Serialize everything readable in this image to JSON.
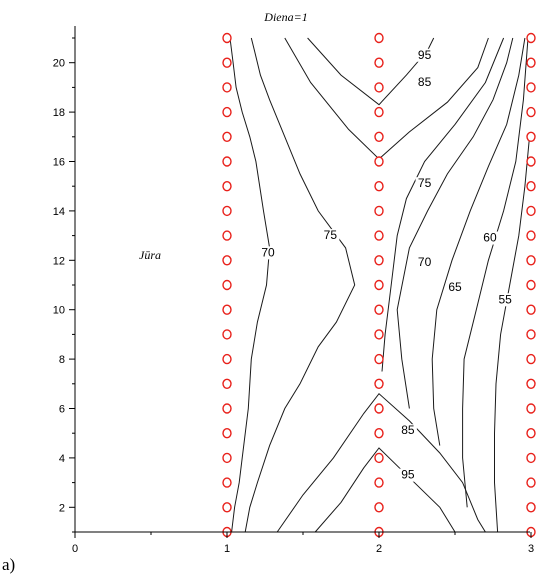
{
  "chart_data": {
    "type": "contour",
    "title": "Diena=1",
    "panel_label": "a)",
    "region_label": "Jūra",
    "xlim": [
      0,
      3
    ],
    "ylim": [
      1,
      21
    ],
    "x_ticks": [
      "0",
      "1",
      "2",
      "3"
    ],
    "y_ticks": [
      "2",
      "4",
      "6",
      "8",
      "10",
      "12",
      "14",
      "16",
      "18",
      "20"
    ],
    "grid_points": {
      "x": [
        1,
        2,
        3
      ],
      "y": [
        1,
        2,
        3,
        4,
        5,
        6,
        7,
        8,
        9,
        10,
        11,
        12,
        13,
        14,
        15,
        16,
        17,
        18,
        19,
        20,
        21
      ],
      "marker": "circle",
      "color": "#e8201a"
    },
    "contour_labels": [
      {
        "text": "70",
        "x": 1.27,
        "y": 12.2
      },
      {
        "text": "75",
        "x": 1.68,
        "y": 12.9
      },
      {
        "text": "95",
        "x": 2.3,
        "y": 20.2
      },
      {
        "text": "85",
        "x": 2.3,
        "y": 19.1
      },
      {
        "text": "75",
        "x": 2.3,
        "y": 15.0
      },
      {
        "text": "70",
        "x": 2.3,
        "y": 11.8
      },
      {
        "text": "65",
        "x": 2.5,
        "y": 10.8
      },
      {
        "text": "60",
        "x": 2.73,
        "y": 12.8
      },
      {
        "text": "55",
        "x": 2.83,
        "y": 10.3
      },
      {
        "text": "85",
        "x": 2.19,
        "y": 5.0
      },
      {
        "text": "95",
        "x": 2.19,
        "y": 3.2
      }
    ],
    "contours": [
      {
        "level": "70",
        "points": [
          [
            1.03,
            1
          ],
          [
            1.05,
            2
          ],
          [
            1.08,
            3
          ],
          [
            1.1,
            4
          ],
          [
            1.14,
            6
          ],
          [
            1.16,
            8
          ],
          [
            1.2,
            9.5
          ],
          [
            1.26,
            11
          ],
          [
            1.28,
            12.5
          ],
          [
            1.24,
            14
          ],
          [
            1.19,
            16
          ],
          [
            1.15,
            17
          ],
          [
            1.1,
            18
          ],
          [
            1.06,
            19
          ],
          [
            1.04,
            20
          ],
          [
            1.02,
            21
          ]
        ]
      },
      {
        "level": "75",
        "points": [
          [
            1.12,
            1
          ],
          [
            1.15,
            2
          ],
          [
            1.2,
            3
          ],
          [
            1.28,
            4.5
          ],
          [
            1.38,
            6
          ],
          [
            1.48,
            7
          ],
          [
            1.6,
            8.5
          ],
          [
            1.72,
            9.5
          ],
          [
            1.84,
            11
          ],
          [
            1.78,
            12.5
          ],
          [
            1.6,
            14
          ],
          [
            1.48,
            15.5
          ],
          [
            1.38,
            17
          ],
          [
            1.28,
            18.5
          ],
          [
            1.22,
            19.5
          ],
          [
            1.18,
            20.5
          ],
          [
            1.16,
            21
          ]
        ]
      },
      {
        "level": "95",
        "points": [
          [
            1.53,
            21
          ],
          [
            1.75,
            19.5
          ],
          [
            2.0,
            18.3
          ],
          [
            2.18,
            19.5
          ],
          [
            2.32,
            20.5
          ],
          [
            2.36,
            21
          ]
        ]
      },
      {
        "level": "85",
        "points": [
          [
            1.38,
            21
          ],
          [
            1.55,
            19.2
          ],
          [
            1.8,
            17.3
          ],
          [
            2.0,
            16.1
          ],
          [
            2.2,
            17.2
          ],
          [
            2.45,
            18.4
          ],
          [
            2.65,
            19.8
          ],
          [
            2.72,
            21
          ]
        ]
      },
      {
        "level": "75",
        "points": [
          [
            2.02,
            7.5
          ],
          [
            2.04,
            9
          ],
          [
            2.08,
            11
          ],
          [
            2.12,
            13
          ],
          [
            2.18,
            14.5
          ],
          [
            2.3,
            16
          ],
          [
            2.5,
            17.5
          ],
          [
            2.7,
            19.2
          ],
          [
            2.82,
            21
          ]
        ]
      },
      {
        "level": "70",
        "points": [
          [
            2.2,
            6
          ],
          [
            2.15,
            8
          ],
          [
            2.12,
            10
          ],
          [
            2.2,
            12.5
          ],
          [
            2.32,
            14
          ],
          [
            2.45,
            15.5
          ],
          [
            2.62,
            17
          ],
          [
            2.75,
            18.5
          ],
          [
            2.84,
            20
          ],
          [
            2.88,
            21
          ]
        ]
      },
      {
        "level": "65",
        "points": [
          [
            2.4,
            4.5
          ],
          [
            2.36,
            6
          ],
          [
            2.35,
            8
          ],
          [
            2.38,
            10
          ],
          [
            2.48,
            12
          ],
          [
            2.6,
            14
          ],
          [
            2.72,
            15.8
          ],
          [
            2.84,
            17.5
          ],
          [
            2.92,
            19.5
          ],
          [
            2.96,
            21
          ]
        ]
      },
      {
        "level": "60",
        "points": [
          [
            2.58,
            2
          ],
          [
            2.55,
            4
          ],
          [
            2.55,
            6
          ],
          [
            2.56,
            8
          ],
          [
            2.64,
            10
          ],
          [
            2.72,
            12
          ],
          [
            2.82,
            14
          ],
          [
            2.9,
            16
          ],
          [
            2.95,
            18.5
          ],
          [
            2.98,
            21
          ]
        ]
      },
      {
        "level": "55",
        "points": [
          [
            2.78,
            1
          ],
          [
            2.76,
            3
          ],
          [
            2.76,
            5
          ],
          [
            2.77,
            7
          ],
          [
            2.8,
            9
          ],
          [
            2.86,
            11
          ],
          [
            2.92,
            13
          ],
          [
            2.96,
            15
          ],
          [
            2.99,
            17
          ]
        ]
      },
      {
        "level": "85",
        "points": [
          [
            1.33,
            1
          ],
          [
            1.5,
            2.5
          ],
          [
            1.7,
            4
          ],
          [
            1.9,
            5.8
          ],
          [
            2.0,
            6.6
          ],
          [
            2.2,
            5.5
          ],
          [
            2.4,
            4.2
          ],
          [
            2.55,
            3
          ],
          [
            2.65,
            1.5
          ],
          [
            2.7,
            1
          ]
        ]
      },
      {
        "level": "95",
        "points": [
          [
            1.58,
            1
          ],
          [
            1.75,
            2.2
          ],
          [
            1.9,
            3.6
          ],
          [
            2.0,
            4.4
          ],
          [
            2.2,
            3.2
          ],
          [
            2.4,
            2
          ],
          [
            2.5,
            1
          ]
        ]
      }
    ]
  }
}
